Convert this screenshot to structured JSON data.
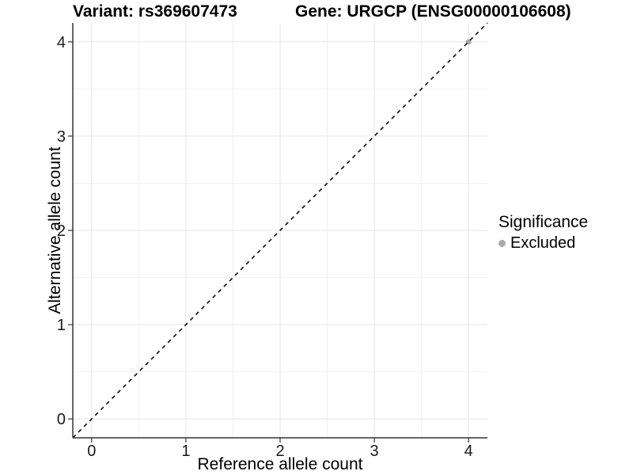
{
  "titles": {
    "left": "Variant: rs369607473",
    "right": "Gene: URGCP (ENSG00000106608)"
  },
  "chart_data": {
    "type": "scatter",
    "title_left": "Variant: rs369607473",
    "title_right": "Gene: URGCP (ENSG00000106608)",
    "xlabel": "Reference allele count",
    "ylabel": "Alternative allele count",
    "xlim": [
      -0.2,
      4.2
    ],
    "ylim": [
      -0.2,
      4.2
    ],
    "xticks": [
      0,
      1,
      2,
      3,
      4
    ],
    "yticks": [
      0,
      1,
      2,
      3,
      4
    ],
    "minor_gridlines_x": [
      0.5,
      1.5,
      2.5,
      3.5
    ],
    "minor_gridlines_y": [
      0.5,
      1.5,
      2.5,
      3.5
    ],
    "grid": true,
    "points": [
      {
        "x": 4,
        "y": 4,
        "series": "Excluded"
      }
    ],
    "abline": {
      "slope": 1,
      "intercept": 0,
      "style": "dashed"
    },
    "legend": {
      "title": "Significance",
      "position": "right",
      "items": [
        {
          "label": "Excluded",
          "color": "#a9a9a9"
        }
      ]
    },
    "colors": {
      "background": "#ffffff",
      "grid_major": "#e5e5e5",
      "grid_minor": "#f0f0f0",
      "axis": "#333333",
      "tick_label": "#1a1a1a",
      "identity_line": "#000000",
      "point": "#a9a9a9"
    }
  }
}
